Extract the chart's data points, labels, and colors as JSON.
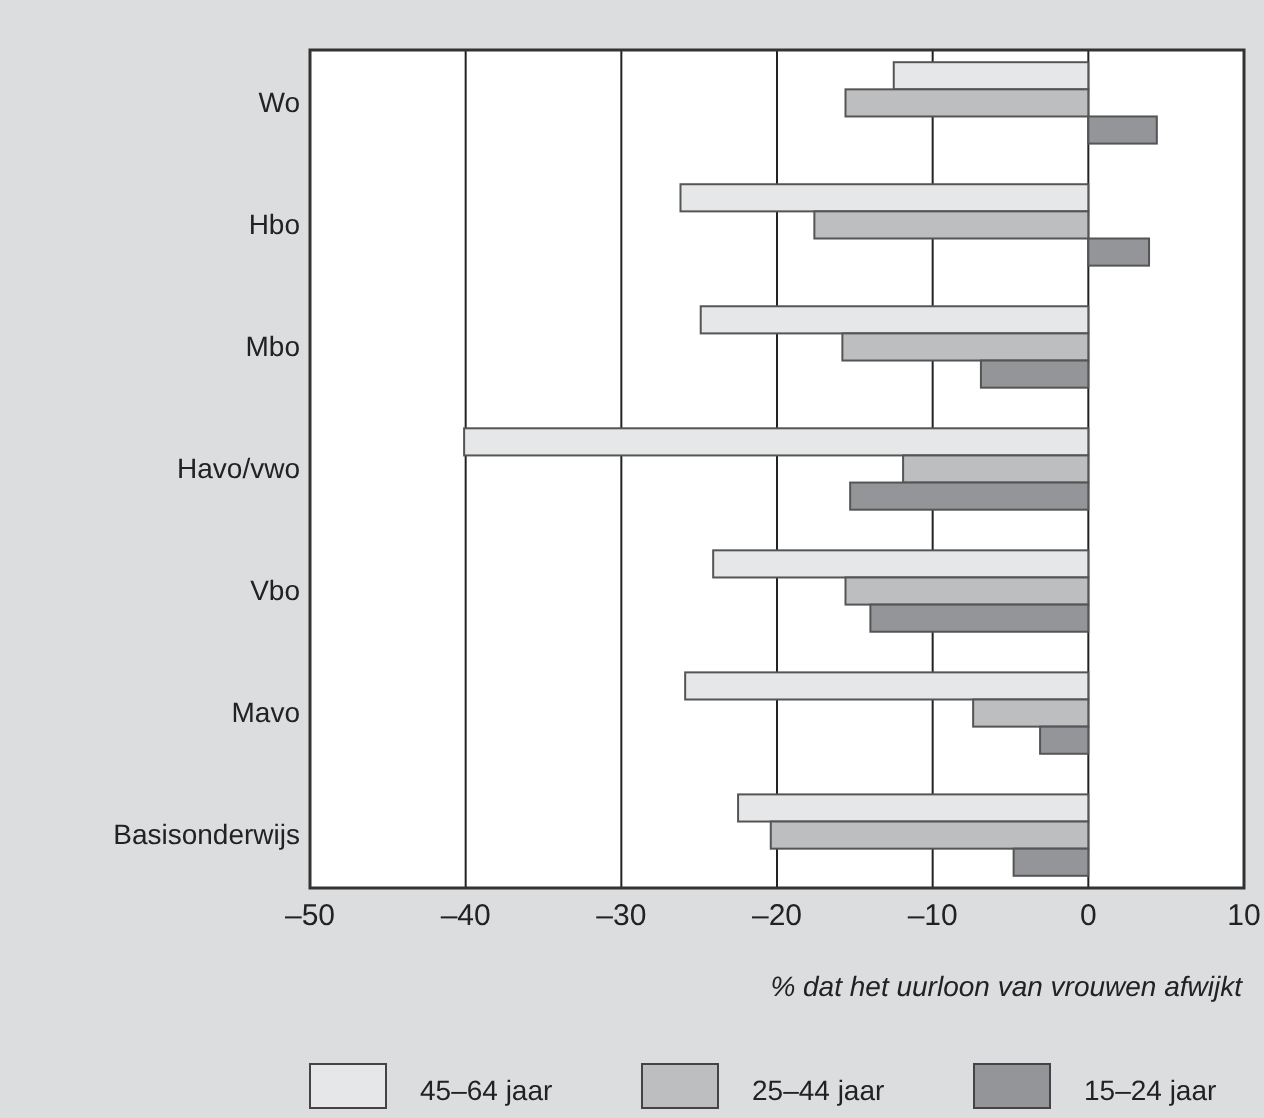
{
  "chart_data": {
    "type": "bar",
    "orientation": "horizontal",
    "xlabel": "% dat het uurloon van vrouwen afwijkt",
    "categories": [
      "Wo",
      "Hbo",
      "Mbo",
      "Havo/vwo",
      "Vbo",
      "Mavo",
      "Basisonderwijs"
    ],
    "series": [
      {
        "name": "45–64 jaar",
        "color": "#e6e7e8",
        "values": [
          -12.5,
          -26.2,
          -24.9,
          -40.1,
          -24.1,
          -25.9,
          -22.5
        ]
      },
      {
        "name": "25–44 jaar",
        "color": "#bdbec0",
        "values": [
          -15.6,
          -17.6,
          -15.8,
          -11.9,
          -15.6,
          -7.4,
          -20.4
        ]
      },
      {
        "name": "15–24 jaar",
        "color": "#939598",
        "values": [
          4.4,
          3.9,
          -6.9,
          -15.3,
          -14.0,
          -3.1,
          -4.8
        ]
      }
    ],
    "xlim": [
      -50,
      10
    ],
    "xticks": [
      {
        "value": -50,
        "label": "–50"
      },
      {
        "value": -40,
        "label": "–40"
      },
      {
        "value": -30,
        "label": "–30"
      },
      {
        "value": -20,
        "label": "–20"
      },
      {
        "value": -10,
        "label": "–10"
      },
      0,
      10
    ],
    "grid": "x",
    "legend": "bottom"
  }
}
